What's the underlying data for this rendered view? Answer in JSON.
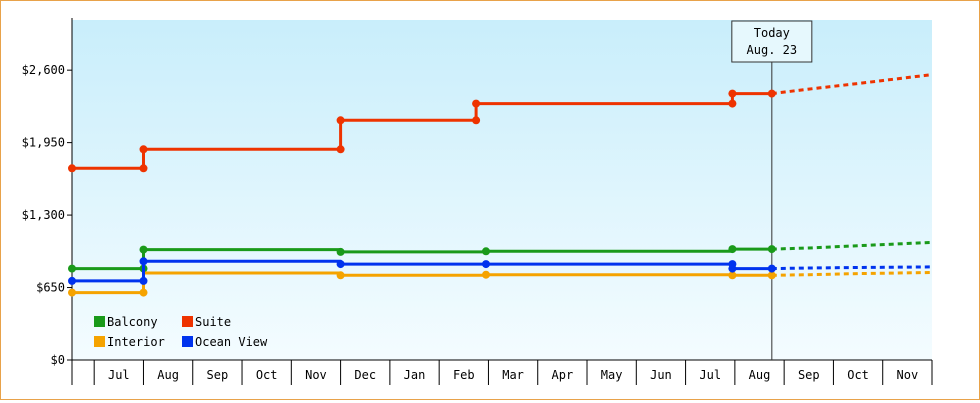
{
  "chart_data": {
    "type": "line",
    "step": true,
    "currency_prefix": "$",
    "y_ticks": [
      0,
      650,
      1300,
      1950,
      2600
    ],
    "y_tick_labels": [
      "$0",
      "$650",
      "$1,300",
      "$1,950",
      "$2,600"
    ],
    "ylim": [
      0,
      3050
    ],
    "x_tick_labels": [
      "Jul",
      "Aug",
      "Sep",
      "Oct",
      "Nov",
      "Dec",
      "Jan",
      "Feb",
      "Mar",
      "Apr",
      "May",
      "Jun",
      "Jul",
      "Aug",
      "Sep",
      "Oct",
      "Nov"
    ],
    "x_unit": "month index (0 = start of Jul, 1 month per unit)",
    "xlim": [
      -0.45,
      17.0
    ],
    "today": {
      "line1": "Today",
      "line2": "Aug. 23",
      "x": 13.75
    },
    "grid": false,
    "legend": {
      "placement": "bottom-left"
    },
    "series": [
      {
        "name": "Balcony",
        "color": "#1a9a1a",
        "points": [
          [
            -0.45,
            820
          ],
          [
            1.0,
            820
          ],
          [
            1.0,
            990
          ],
          [
            5.0,
            990
          ],
          [
            5.0,
            970
          ],
          [
            7.95,
            970
          ],
          [
            7.95,
            975
          ],
          [
            12.95,
            975
          ],
          [
            12.95,
            995
          ],
          [
            13.75,
            995
          ]
        ],
        "markers": [
          [
            -0.45,
            820
          ],
          [
            1.0,
            820
          ],
          [
            1.0,
            990
          ],
          [
            5.0,
            970
          ],
          [
            7.95,
            975
          ],
          [
            12.95,
            995
          ],
          [
            13.75,
            995
          ]
        ],
        "forecast": [
          [
            13.75,
            995
          ],
          [
            14.5,
            1005
          ],
          [
            15.5,
            1025
          ],
          [
            17.0,
            1055
          ]
        ]
      },
      {
        "name": "Suite",
        "color": "#ee3300",
        "points": [
          [
            -0.45,
            1720
          ],
          [
            1.0,
            1720
          ],
          [
            1.0,
            1890
          ],
          [
            5.0,
            1890
          ],
          [
            5.0,
            2150
          ],
          [
            7.75,
            2150
          ],
          [
            7.75,
            2300
          ],
          [
            12.95,
            2300
          ],
          [
            12.95,
            2390
          ],
          [
            13.75,
            2390
          ]
        ],
        "markers": [
          [
            -0.45,
            1720
          ],
          [
            1.0,
            1720
          ],
          [
            1.0,
            1890
          ],
          [
            5.0,
            1890
          ],
          [
            5.0,
            2150
          ],
          [
            7.75,
            2150
          ],
          [
            7.75,
            2300
          ],
          [
            12.95,
            2300
          ],
          [
            12.95,
            2390
          ],
          [
            13.75,
            2390
          ]
        ],
        "forecast": [
          [
            13.75,
            2390
          ],
          [
            14.5,
            2430
          ],
          [
            15.5,
            2480
          ],
          [
            17.0,
            2560
          ]
        ]
      },
      {
        "name": "Interior",
        "color": "#f5a300",
        "points": [
          [
            -0.45,
            605
          ],
          [
            1.0,
            605
          ],
          [
            1.0,
            780
          ],
          [
            5.0,
            780
          ],
          [
            5.0,
            760
          ],
          [
            7.95,
            760
          ],
          [
            7.95,
            765
          ],
          [
            12.95,
            765
          ],
          [
            12.95,
            760
          ],
          [
            13.75,
            760
          ]
        ],
        "markers": [
          [
            -0.45,
            605
          ],
          [
            1.0,
            605
          ],
          [
            5.0,
            760
          ],
          [
            7.95,
            765
          ],
          [
            12.95,
            760
          ],
          [
            13.75,
            760
          ]
        ],
        "forecast": [
          [
            13.75,
            760
          ],
          [
            14.5,
            765
          ],
          [
            15.5,
            775
          ],
          [
            17.0,
            785
          ]
        ]
      },
      {
        "name": "Ocean View",
        "color": "#0033ee",
        "points": [
          [
            -0.45,
            710
          ],
          [
            1.0,
            710
          ],
          [
            1.0,
            885
          ],
          [
            5.0,
            885
          ],
          [
            5.0,
            860
          ],
          [
            7.95,
            860
          ],
          [
            7.95,
            860
          ],
          [
            12.95,
            860
          ],
          [
            12.95,
            820
          ],
          [
            13.75,
            820
          ]
        ],
        "markers": [
          [
            -0.45,
            710
          ],
          [
            1.0,
            710
          ],
          [
            1.0,
            885
          ],
          [
            5.0,
            860
          ],
          [
            7.95,
            860
          ],
          [
            12.95,
            860
          ],
          [
            12.95,
            820
          ],
          [
            13.75,
            820
          ]
        ],
        "forecast": [
          [
            13.75,
            820
          ],
          [
            14.5,
            825
          ],
          [
            15.5,
            830
          ],
          [
            17.0,
            835
          ]
        ]
      }
    ]
  }
}
